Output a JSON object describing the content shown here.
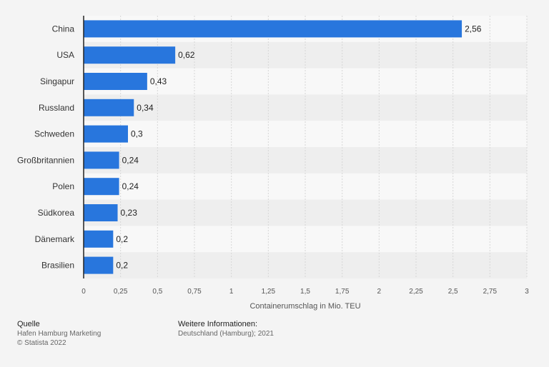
{
  "chart_data": {
    "type": "bar",
    "orientation": "horizontal",
    "categories": [
      "China",
      "USA",
      "Singapur",
      "Russland",
      "Schweden",
      "Großbritannien",
      "Polen",
      "Südkorea",
      "Dänemark",
      "Brasilien"
    ],
    "values": [
      2.56,
      0.62,
      0.43,
      0.34,
      0.3,
      0.24,
      0.24,
      0.23,
      0.2,
      0.2
    ],
    "value_labels": [
      "2,56",
      "0,62",
      "0,43",
      "0,34",
      "0,3",
      "0,24",
      "0,24",
      "0,23",
      "0,2",
      "0,2"
    ],
    "xlabel": "Containerumschlag in Mio. TEU",
    "xlim": [
      0,
      3
    ],
    "xticks": [
      0,
      0.25,
      0.5,
      0.75,
      1,
      1.25,
      1.5,
      1.75,
      2,
      2.25,
      2.5,
      2.75,
      3
    ],
    "xtick_labels": [
      "0",
      "0,25",
      "0,5",
      "0,75",
      "1",
      "1,25",
      "1,5",
      "1,75",
      "2",
      "2,25",
      "2,5",
      "2,75",
      "3"
    ],
    "grid": true,
    "bar_color": "#2876dd",
    "stripe_color": "#eeeeee",
    "plot_bg": "#f8f8f8"
  },
  "footer": {
    "source_heading": "Quelle",
    "source_line1": "Hafen Hamburg Marketing",
    "source_line2": "© Statista 2022",
    "info_heading": "Weitere Informationen:",
    "info_line1": "Deutschland (Hamburg); 2021"
  }
}
